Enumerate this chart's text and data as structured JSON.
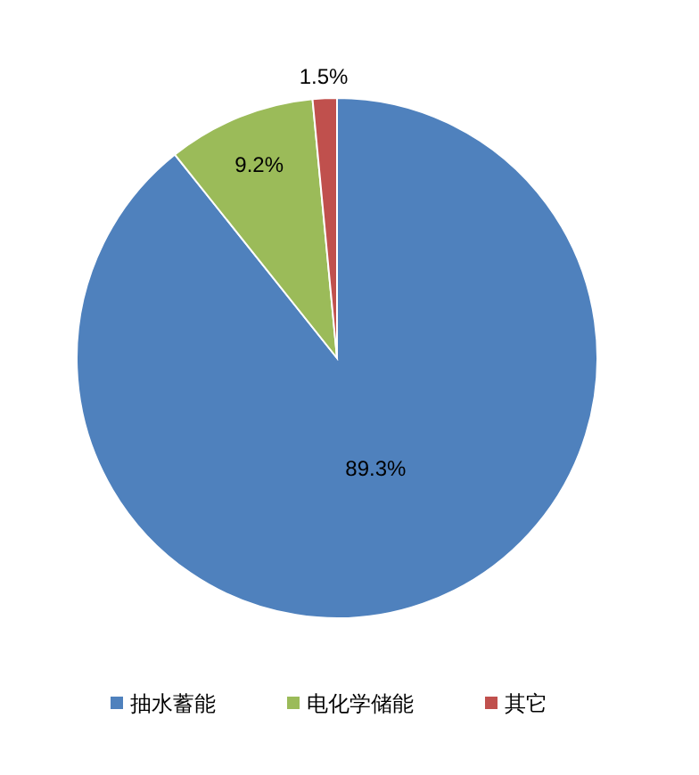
{
  "chart_data": {
    "type": "pie",
    "categories": [
      "抽水蓄能",
      "电化学储能",
      "其它"
    ],
    "values": [
      89.3,
      9.2,
      1.5
    ],
    "colors": [
      "#4f81bd",
      "#9bbb59",
      "#c0504d"
    ],
    "value_labels": [
      "89.3%",
      "9.2%",
      "1.5%"
    ],
    "legend": "bottom"
  }
}
